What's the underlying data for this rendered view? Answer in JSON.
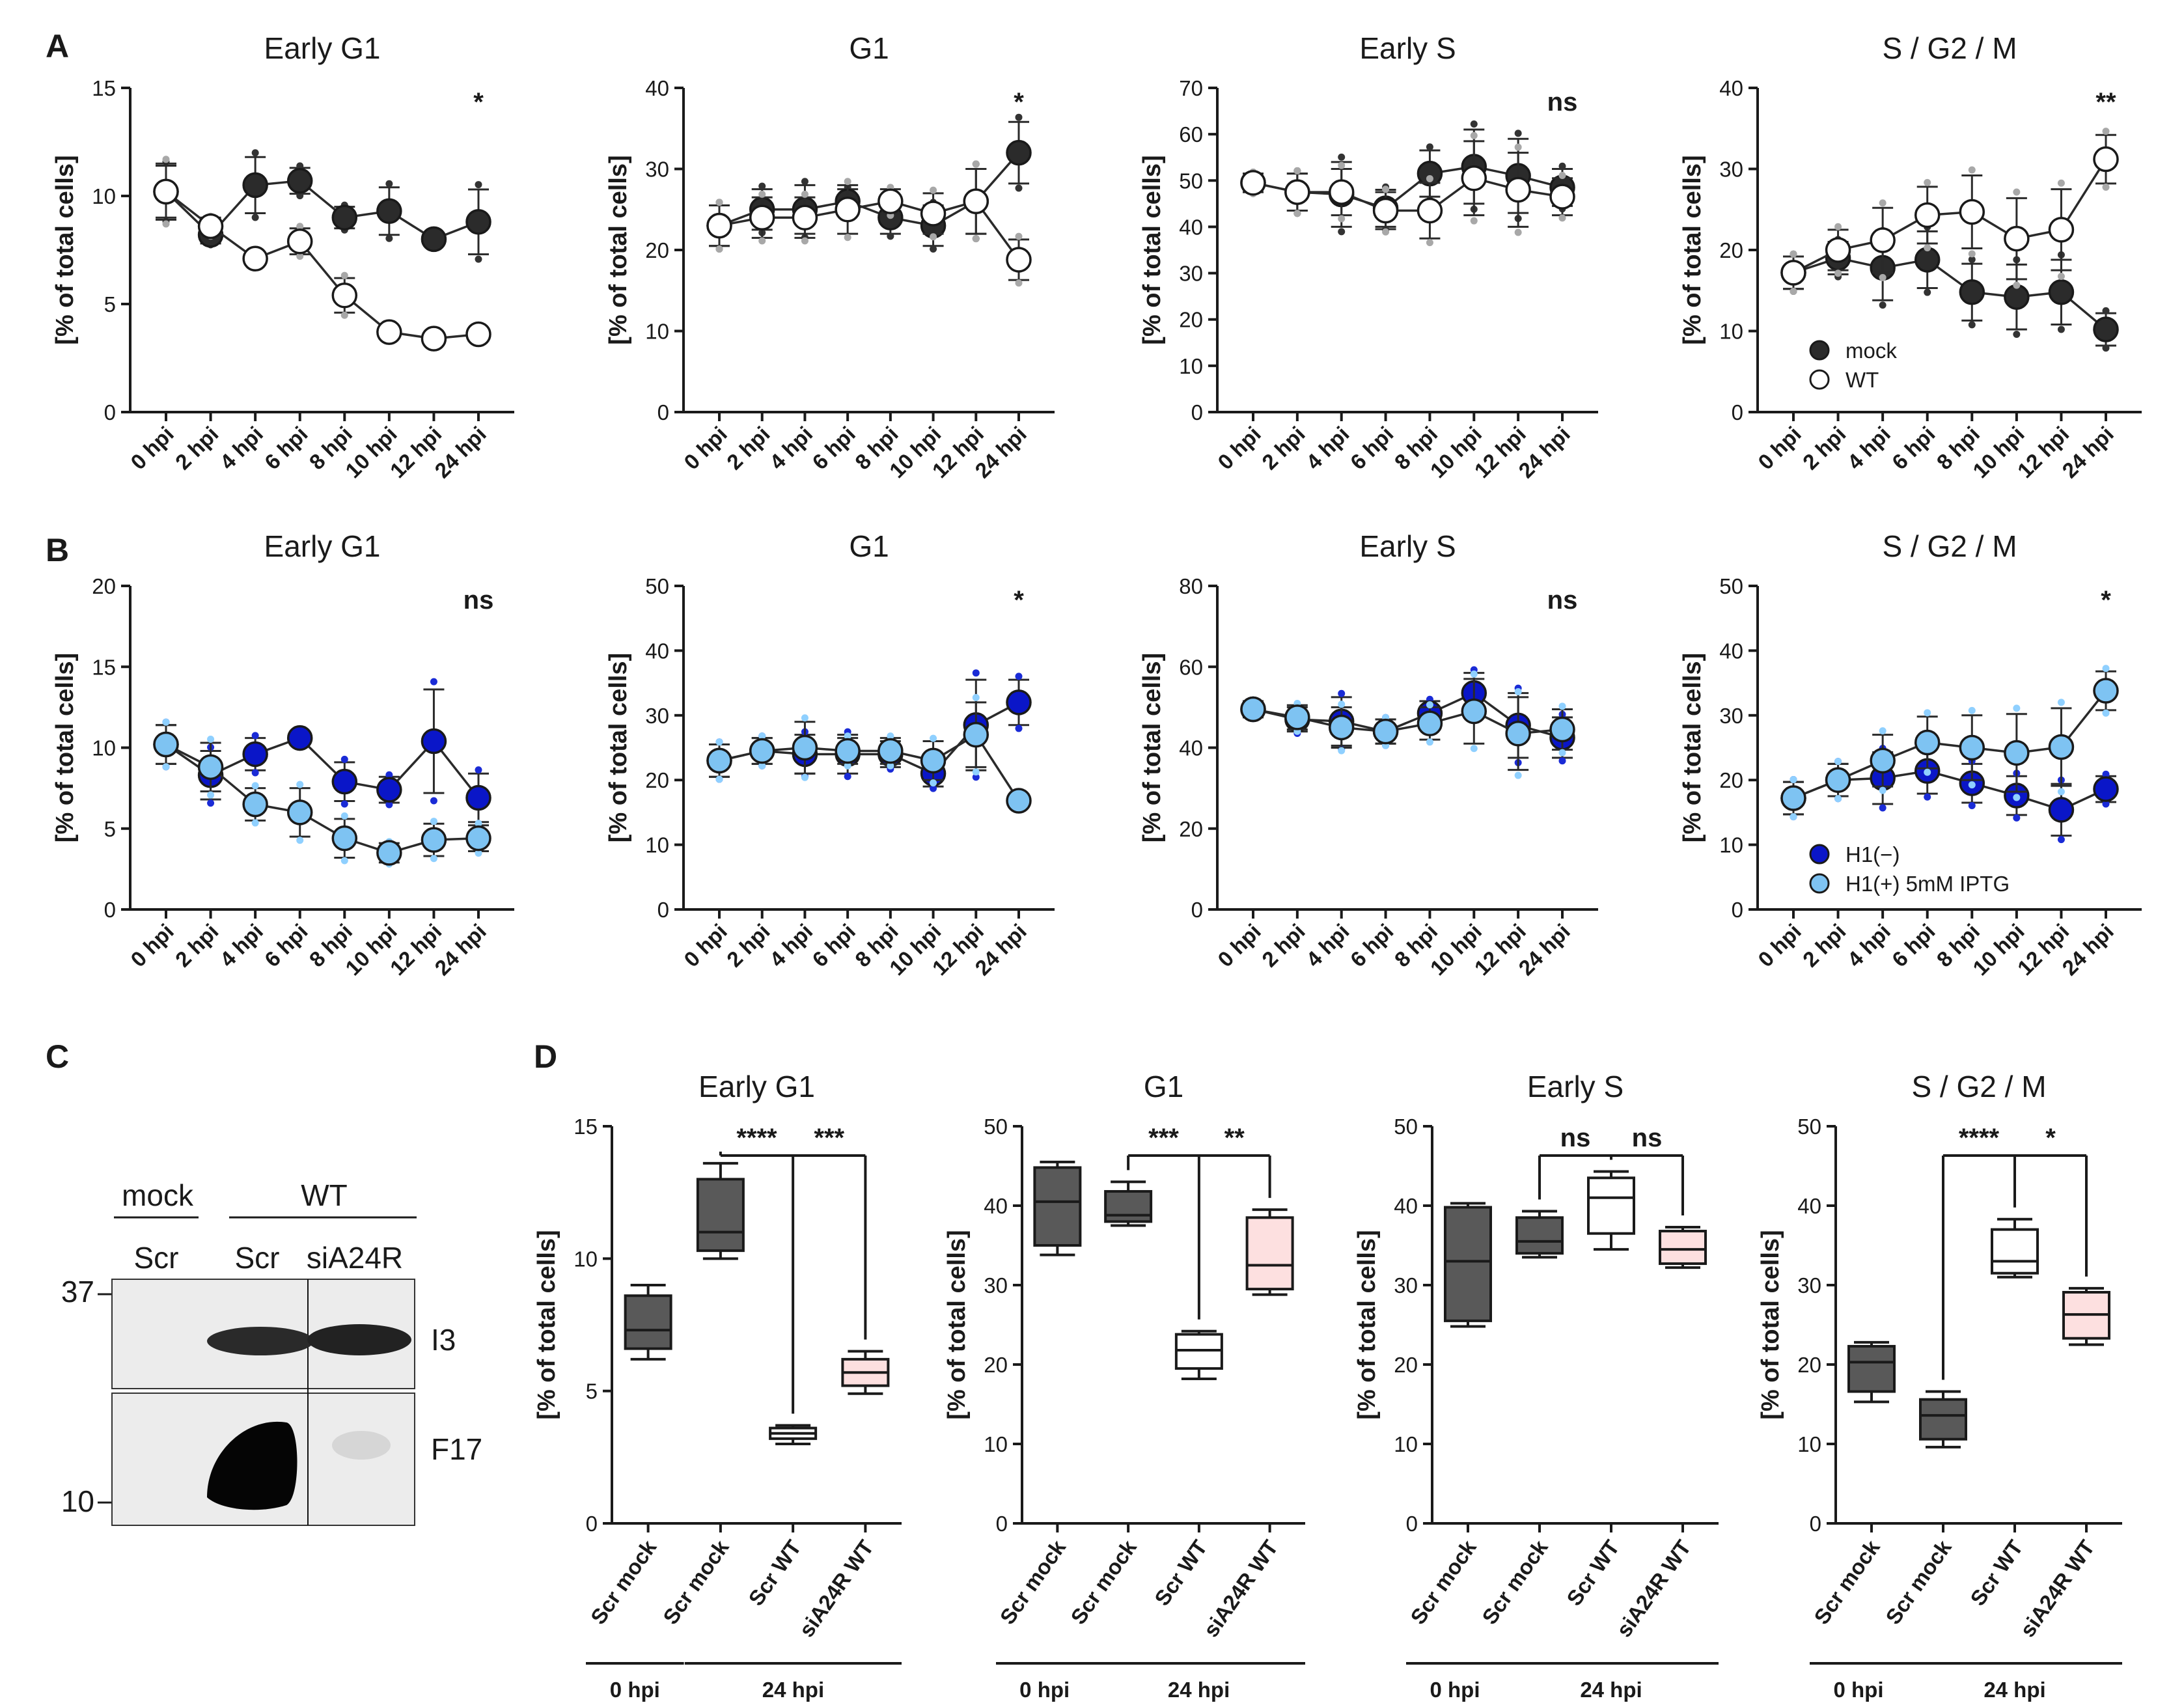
{
  "panel_labels": [
    "A",
    "B",
    "C",
    "D"
  ],
  "colors": {
    "mock": "#2b2b2b",
    "wt": "#ffffff",
    "h1neg": "#0a16c8",
    "h1pos": "#7ec3f2",
    "scr_mock_0": "#595959",
    "scr_mock_24": "#595959",
    "scr_wt": "#ffffff",
    "sia24r_wt": "#fde0e0"
  },
  "chart_data": [
    {
      "id": "A1",
      "type": "line",
      "title": "Early G1",
      "ylabel": "[% of total cells]",
      "ylim": [
        0,
        15
      ],
      "yticks": [
        0,
        5,
        10,
        15
      ],
      "categories": [
        "0 hpi",
        "2 hpi",
        "4 hpi",
        "6 hpi",
        "8 hpi",
        "10 hpi",
        "12 hpi",
        "24 hpi"
      ],
      "significance": "*",
      "series": [
        {
          "name": "mock",
          "values": [
            10.2,
            8.2,
            10.5,
            10.7,
            9.0,
            9.3,
            8.0,
            8.8
          ],
          "errors": [
            1.2,
            0.4,
            1.3,
            0.6,
            0.5,
            1.1,
            0.2,
            1.5
          ]
        },
        {
          "name": "WT",
          "values": [
            10.2,
            8.6,
            7.1,
            7.9,
            5.4,
            3.7,
            3.4,
            3.6
          ],
          "errors": [
            1.3,
            0.4,
            0.3,
            0.6,
            0.8,
            0.2,
            0.2,
            0.3
          ]
        }
      ]
    },
    {
      "id": "A2",
      "type": "line",
      "title": "G1",
      "ylabel": "[% of total cells]",
      "ylim": [
        0,
        40
      ],
      "yticks": [
        0,
        10,
        20,
        30,
        40
      ],
      "categories": [
        "0 hpi",
        "2 hpi",
        "4 hpi",
        "6 hpi",
        "8 hpi",
        "10 hpi",
        "12 hpi",
        "24 hpi"
      ],
      "significance": "*",
      "series": [
        {
          "name": "mock",
          "values": [
            23,
            25,
            25,
            26,
            24,
            23,
            26,
            32
          ],
          "errors": [
            2.5,
            2.5,
            3.0,
            1.5,
            2.0,
            2.5,
            4.0,
            3.8
          ]
        },
        {
          "name": "WT",
          "values": [
            23,
            24,
            24,
            25,
            26,
            24.5,
            26,
            18.8
          ],
          "errors": [
            2.5,
            2.5,
            2.5,
            3.0,
            1.5,
            2.5,
            4.0,
            2.5
          ]
        }
      ]
    },
    {
      "id": "A3",
      "type": "line",
      "title": "Early S",
      "ylabel": "[% of total cells]",
      "ylim": [
        0,
        70
      ],
      "yticks": [
        0,
        10,
        20,
        30,
        40,
        50,
        60,
        70
      ],
      "categories": [
        "0 hpi",
        "2 hpi",
        "4 hpi",
        "6 hpi",
        "8 hpi",
        "10 hpi",
        "12 hpi",
        "24 hpi"
      ],
      "significance": "ns",
      "series": [
        {
          "name": "mock",
          "values": [
            49.5,
            47.5,
            47,
            44,
            51.5,
            53,
            51,
            48.5
          ],
          "errors": [
            2,
            4,
            7,
            4,
            5,
            8,
            8,
            4
          ]
        },
        {
          "name": "WT",
          "values": [
            49.5,
            47.5,
            47.5,
            43.5,
            43.5,
            50.5,
            48,
            46.5
          ],
          "errors": [
            2,
            4,
            5,
            4,
            6,
            8,
            8,
            4
          ]
        }
      ]
    },
    {
      "id": "A4",
      "type": "line",
      "title": "S / G2 / M",
      "ylabel": "[% of total cells]",
      "ylim": [
        0,
        40
      ],
      "yticks": [
        0,
        10,
        20,
        30,
        40
      ],
      "categories": [
        "0 hpi",
        "2 hpi",
        "4 hpi",
        "6 hpi",
        "8 hpi",
        "10 hpi",
        "12 hpi",
        "24 hpi"
      ],
      "significance": "**",
      "legend": [
        "mock",
        "WT"
      ],
      "series": [
        {
          "name": "mock",
          "values": [
            17.2,
            19,
            17.8,
            18.8,
            14.8,
            14.2,
            14.8,
            10.2
          ],
          "errors": [
            2,
            2,
            4,
            3.5,
            3.5,
            4,
            4,
            2
          ]
        },
        {
          "name": "WT",
          "values": [
            17.2,
            20,
            21.2,
            24.3,
            24.7,
            21.4,
            22.5,
            31.2
          ],
          "errors": [
            2,
            2.5,
            4,
            3.5,
            4.5,
            5,
            5,
            3
          ]
        }
      ]
    },
    {
      "id": "B1",
      "type": "line",
      "title": "Early G1",
      "ylabel": "[% of total cells]",
      "ylim": [
        0,
        20
      ],
      "yticks": [
        0,
        5,
        10,
        15,
        20
      ],
      "categories": [
        "0 hpi",
        "2 hpi",
        "4 hpi",
        "6 hpi",
        "8 hpi",
        "10 hpi",
        "12 hpi",
        "24 hpi"
      ],
      "significance": "ns",
      "series": [
        {
          "name": "H1(−)",
          "values": [
            10.2,
            8.3,
            9.6,
            10.6,
            7.9,
            7.4,
            10.4,
            6.9
          ],
          "errors": [
            1.2,
            1.5,
            1.0,
            0.3,
            1.2,
            0.8,
            3.2,
            1.5
          ]
        },
        {
          "name": "H1(+) 5mM IPTG",
          "values": [
            10.2,
            8.8,
            6.5,
            6.0,
            4.4,
            3.5,
            4.3,
            4.4
          ],
          "errors": [
            1.2,
            1.5,
            1.0,
            1.5,
            1.2,
            0.6,
            1.0,
            0.8
          ]
        }
      ]
    },
    {
      "id": "B2",
      "type": "line",
      "title": "G1",
      "ylabel": "[% of total cells]",
      "ylim": [
        0,
        50
      ],
      "yticks": [
        0,
        10,
        20,
        30,
        40,
        50
      ],
      "categories": [
        "0 hpi",
        "2 hpi",
        "4 hpi",
        "6 hpi",
        "8 hpi",
        "10 hpi",
        "12 hpi",
        "24 hpi"
      ],
      "significance": "*",
      "series": [
        {
          "name": "H1(−)",
          "values": [
            23,
            24.5,
            24,
            24,
            24,
            21,
            28.5,
            32
          ],
          "errors": [
            2.5,
            2,
            3,
            3,
            2,
            2,
            7,
            3.5
          ]
        },
        {
          "name": "H1(+) 5mM IPTG",
          "values": [
            23,
            24.5,
            25,
            24.5,
            24.5,
            23,
            27,
            16.8
          ],
          "errors": [
            2.5,
            2,
            4,
            2,
            2,
            3,
            5,
            1
          ]
        }
      ]
    },
    {
      "id": "B3",
      "type": "line",
      "title": "Early S",
      "ylabel": "[% of total cells]",
      "ylim": [
        0,
        80
      ],
      "yticks": [
        0,
        20,
        40,
        60,
        80
      ],
      "categories": [
        "0 hpi",
        "2 hpi",
        "4 hpi",
        "6 hpi",
        "8 hpi",
        "10 hpi",
        "12 hpi",
        "24 hpi"
      ],
      "significance": "ns",
      "series": [
        {
          "name": "H1(−)",
          "values": [
            49.5,
            47,
            46.5,
            44,
            48.5,
            53.5,
            45.5,
            42.5
          ],
          "errors": [
            2,
            3,
            6,
            3,
            3,
            5,
            8,
            5
          ]
        },
        {
          "name": "H1(+) 5mM IPTG",
          "values": [
            49.5,
            47.5,
            45,
            44,
            46,
            49,
            43.5,
            44.5
          ],
          "errors": [
            2,
            3,
            5,
            3,
            4,
            8,
            9,
            5
          ]
        }
      ]
    },
    {
      "id": "B4",
      "type": "line",
      "title": "S / G2 / M",
      "ylabel": "[% of total cells]",
      "ylim": [
        0,
        50
      ],
      "yticks": [
        0,
        10,
        20,
        30,
        40,
        50
      ],
      "categories": [
        "0 hpi",
        "2 hpi",
        "4 hpi",
        "6 hpi",
        "8 hpi",
        "10 hpi",
        "12 hpi",
        "24 hpi"
      ],
      "significance": "*",
      "legend": [
        "H1(−)",
        "H1(+) 5mM IPTG"
      ],
      "series": [
        {
          "name": "H1(−)",
          "values": [
            17.2,
            20,
            20.3,
            21.4,
            19.5,
            17.6,
            15.4,
            18.6
          ],
          "errors": [
            2.5,
            2.5,
            4,
            3.5,
            3,
            3,
            4,
            2
          ]
        },
        {
          "name": "H1(+) 5mM IPTG",
          "values": [
            17.2,
            20,
            23,
            25.8,
            25,
            24.2,
            25.1,
            33.8
          ],
          "errors": [
            2.5,
            2.5,
            4,
            4,
            5,
            6,
            6,
            3
          ]
        }
      ]
    },
    {
      "id": "D1",
      "type": "box",
      "title": "Early G1",
      "ylabel": "[% of total cells]",
      "ylim": [
        0,
        15
      ],
      "yticks": [
        0,
        5,
        10,
        15
      ],
      "categories": [
        "Scr mock",
        "Scr mock",
        "Scr WT",
        "siA24R WT"
      ],
      "groups": [
        "0 hpi",
        "24 hpi"
      ],
      "boxes": [
        {
          "min": 6.2,
          "q1": 6.6,
          "median": 7.3,
          "q3": 8.6,
          "max": 9.0
        },
        {
          "min": 10.0,
          "q1": 10.3,
          "median": 11.0,
          "q3": 13.0,
          "max": 13.6
        },
        {
          "min": 3.0,
          "q1": 3.2,
          "median": 3.4,
          "q3": 3.6,
          "max": 3.7
        },
        {
          "min": 4.9,
          "q1": 5.2,
          "median": 5.7,
          "q3": 6.2,
          "max": 6.5
        }
      ],
      "significance": [
        "****",
        "***"
      ]
    },
    {
      "id": "D2",
      "type": "box",
      "title": "G1",
      "ylabel": "[% of total cells]",
      "ylim": [
        0,
        50
      ],
      "yticks": [
        0,
        10,
        20,
        30,
        40,
        50
      ],
      "categories": [
        "Scr mock",
        "Scr mock",
        "Scr WT",
        "siA24R WT"
      ],
      "groups": [
        "0 hpi",
        "24 hpi"
      ],
      "boxes": [
        {
          "min": 33.8,
          "q1": 35,
          "median": 40.5,
          "q3": 44.8,
          "max": 45.5
        },
        {
          "min": 37.5,
          "q1": 38,
          "median": 38.8,
          "q3": 41.8,
          "max": 43
        },
        {
          "min": 18.2,
          "q1": 19.5,
          "median": 21.8,
          "q3": 23.8,
          "max": 24.2
        },
        {
          "min": 28.8,
          "q1": 29.5,
          "median": 32.5,
          "q3": 38.5,
          "max": 39.5
        }
      ],
      "significance": [
        "***",
        "**"
      ]
    },
    {
      "id": "D3",
      "type": "box",
      "title": "Early S",
      "ylabel": "[% of total cells]",
      "ylim": [
        0,
        50
      ],
      "yticks": [
        0,
        10,
        20,
        30,
        40,
        50
      ],
      "categories": [
        "Scr mock",
        "Scr mock",
        "Scr WT",
        "siA24R WT"
      ],
      "groups": [
        "0 hpi",
        "24 hpi"
      ],
      "boxes": [
        {
          "min": 24.8,
          "q1": 25.5,
          "median": 33,
          "q3": 39.8,
          "max": 40.3
        },
        {
          "min": 33.5,
          "q1": 34,
          "median": 35.5,
          "q3": 38.5,
          "max": 39.3
        },
        {
          "min": 34.5,
          "q1": 36.5,
          "median": 41,
          "q3": 43.5,
          "max": 44.3
        },
        {
          "min": 32.2,
          "q1": 32.7,
          "median": 34.5,
          "q3": 36.8,
          "max": 37.3
        }
      ],
      "significance": [
        "ns",
        "ns"
      ]
    },
    {
      "id": "D4",
      "type": "box",
      "title": "S / G2 / M",
      "ylabel": "[% of total cells]",
      "ylim": [
        0,
        50
      ],
      "yticks": [
        0,
        10,
        20,
        30,
        40,
        50
      ],
      "categories": [
        "Scr mock",
        "Scr mock",
        "Scr WT",
        "siA24R WT"
      ],
      "groups": [
        "0 hpi",
        "24 hpi"
      ],
      "boxes": [
        {
          "min": 15.3,
          "q1": 16.6,
          "median": 20.3,
          "q3": 22.3,
          "max": 22.8
        },
        {
          "min": 9.6,
          "q1": 10.6,
          "median": 13.6,
          "q3": 15.6,
          "max": 16.6
        },
        {
          "min": 31,
          "q1": 31.5,
          "median": 33,
          "q3": 37,
          "max": 38.3
        },
        {
          "min": 22.5,
          "q1": 23.3,
          "median": 26.3,
          "q3": 29.1,
          "max": 29.6
        }
      ],
      "significance": [
        "****",
        "*"
      ]
    }
  ],
  "blot": {
    "group_labels": [
      "mock",
      "WT"
    ],
    "lane_labels": [
      "Scr",
      "Scr",
      "siA24R"
    ],
    "mw_markers": [
      "37",
      "10"
    ],
    "band_labels": [
      "I3",
      "F17"
    ]
  }
}
